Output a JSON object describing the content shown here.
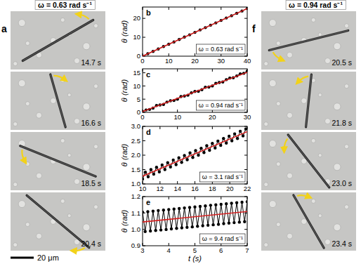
{
  "chart_data": [
    {
      "type": "line",
      "panel": "b",
      "ylabel": "θ (rad)",
      "annotation": "ω = 0.63 rad s⁻¹",
      "xlim": [
        0,
        40
      ],
      "xticks": [
        0,
        10,
        20,
        30,
        40
      ],
      "ylim": [
        0,
        26
      ],
      "yticks": [
        0,
        10,
        20
      ],
      "grid": false,
      "series": [
        {
          "type": "line",
          "marker": "circle",
          "line_style": "solid",
          "color": "#000000",
          "x": [
            0,
            2,
            4,
            6,
            8,
            10,
            12,
            14,
            16,
            18,
            20,
            22,
            24,
            26,
            28,
            30,
            32,
            34,
            36,
            38,
            40
          ],
          "values": [
            0,
            1.3,
            2.5,
            3.8,
            5.1,
            6.3,
            7.5,
            8.8,
            10.1,
            11.3,
            12.6,
            13.9,
            15.1,
            16.4,
            17.6,
            18.9,
            20.2,
            21.4,
            22.7,
            23.9,
            25.2
          ]
        },
        {
          "type": "line",
          "marker": "none",
          "line_style": "solid",
          "color": "#d42020",
          "x": [
            0,
            40
          ],
          "values": [
            0,
            25.2
          ]
        }
      ]
    },
    {
      "type": "line",
      "panel": "c",
      "ylabel": "θ (rad)",
      "annotation": "ω = 0.94 rad s⁻¹",
      "xlim": [
        0,
        30
      ],
      "xticks": [
        0,
        10,
        20,
        30
      ],
      "ylim": [
        0,
        16.5
      ],
      "yticks": [
        0,
        5,
        10,
        15
      ],
      "grid": false,
      "series": [
        {
          "type": "line",
          "marker": "circle",
          "line_style": "solid",
          "color": "#000000",
          "x": [
            0,
            1,
            2,
            3,
            4,
            5,
            6,
            7,
            8,
            9,
            10,
            11,
            12,
            13,
            14,
            15,
            16,
            17,
            18,
            19,
            20,
            21,
            22,
            23,
            24,
            25,
            26,
            27,
            28,
            29,
            30
          ],
          "values": [
            0.3,
            0.9,
            1.1,
            1.6,
            2.6,
            2.8,
            3.0,
            3.9,
            4.4,
            4.5,
            5.0,
            6.0,
            6.2,
            6.5,
            7.4,
            7.9,
            8.0,
            8.6,
            9.5,
            9.6,
            10.0,
            11.0,
            11.3,
            11.5,
            12.4,
            13.0,
            13.1,
            13.8,
            14.6,
            14.8,
            15.6
          ]
        },
        {
          "type": "line",
          "marker": "none",
          "line_style": "solid",
          "color": "#d42020",
          "x": [
            0,
            30
          ],
          "values": [
            0.3,
            15.2
          ]
        }
      ]
    },
    {
      "type": "line",
      "panel": "d",
      "ylabel": "θ (rad)",
      "annotation": "ω = 3.1 rad s⁻¹",
      "xlim": [
        10,
        22
      ],
      "xticks": [
        10,
        12,
        14,
        16,
        18,
        20,
        22
      ],
      "ylim": [
        1,
        3
      ],
      "yticks": [
        {
          "value": 1,
          "label": "1.0"
        },
        1.5,
        {
          "value": 2,
          "label": "2.0"
        },
        2.5,
        {
          "value": 3,
          "label": "3.0"
        }
      ],
      "grid": false,
      "series": [
        {
          "type": "line",
          "marker": "circle",
          "line_style": "solid",
          "color": "#000000",
          "x": [
            10,
            10.32,
            10.64,
            10.96,
            11.28,
            11.6,
            11.92,
            12.24,
            12.56,
            12.88,
            13.2,
            13.52,
            13.84,
            14.16,
            14.48,
            14.8,
            15.12,
            15.44,
            15.76,
            16.08,
            16.4,
            16.72,
            17.04,
            17.36,
            17.68,
            18,
            18.32,
            18.64,
            18.96,
            19.28,
            19.6,
            19.92,
            20.24,
            20.56,
            20.88,
            21.2,
            21.52,
            21.84
          ],
          "values": [
            1.17,
            1.41,
            1.25,
            1.5,
            1.34,
            1.58,
            1.42,
            1.66,
            1.5,
            1.74,
            1.59,
            1.83,
            1.67,
            1.91,
            1.75,
            1.99,
            1.84,
            2.08,
            1.92,
            2.16,
            2.0,
            2.24,
            2.09,
            2.33,
            2.17,
            2.41,
            2.25,
            2.49,
            2.34,
            2.58,
            2.42,
            2.66,
            2.5,
            2.74,
            2.58,
            2.83,
            2.67,
            2.91
          ]
        },
        {
          "type": "line",
          "marker": "none",
          "line_style": "solid",
          "color": "#d42020",
          "x": [
            10,
            22
          ],
          "values": [
            1.27,
            2.82
          ]
        }
      ]
    },
    {
      "type": "line",
      "panel": "e",
      "ylabel": "θ (rad)",
      "xlabel": "t (s)",
      "annotation": "ω = 9.4 rad s⁻¹",
      "xlim": [
        3,
        7
      ],
      "xticks": [
        3,
        4,
        5,
        6,
        7
      ],
      "ylim": [
        0.9,
        1.2
      ],
      "yticks": [
        0.9,
        {
          "value": 1,
          "label": "1.0"
        },
        1.1,
        1.2
      ],
      "grid": false,
      "series": [
        {
          "type": "line",
          "marker": "circle",
          "line_style": "solid",
          "color": "#000000",
          "x": [
            3,
            3.1,
            3.2,
            3.3,
            3.4,
            3.5,
            3.6,
            3.7,
            3.8,
            3.9,
            4,
            4.1,
            4.2,
            4.3,
            4.4,
            4.5,
            4.6,
            4.7,
            4.8,
            4.9,
            5,
            5.1,
            5.2,
            5.3,
            5.4,
            5.5,
            5.6,
            5.7,
            5.8,
            5.9,
            6,
            6.1,
            6.2,
            6.3,
            6.4,
            6.5,
            6.6,
            6.7,
            6.8,
            6.9,
            7
          ],
          "values": [
            1.105,
            0.987,
            1.108,
            0.99,
            1.111,
            0.993,
            1.115,
            0.996,
            1.118,
            0.999,
            1.121,
            1.003,
            1.124,
            1.006,
            1.127,
            1.009,
            1.131,
            1.012,
            1.134,
            1.015,
            1.137,
            1.019,
            1.14,
            1.022,
            1.143,
            1.025,
            1.147,
            1.028,
            1.15,
            1.031,
            1.153,
            1.035,
            1.156,
            1.038,
            1.159,
            1.041,
            1.163,
            1.044,
            1.166,
            1.047,
            1.169
          ]
        },
        {
          "type": "line",
          "marker": "none",
          "line_style": "solid",
          "color": "#d42020",
          "x": [
            3,
            7
          ],
          "values": [
            1.045,
            1.109
          ]
        }
      ]
    }
  ],
  "image_panels": [
    {
      "panel": "a",
      "header": "ω = 0.63 rad s⁻¹",
      "times": [
        "14.7 s",
        "16.6 s",
        "18.5 s",
        "20.4 s"
      ]
    },
    {
      "panel": "f",
      "header": "ω = 0.94 rad s⁻¹",
      "times": [
        "20.5 s",
        "21.8 s",
        "23.0 s",
        "23.4 s"
      ]
    }
  ],
  "scale_bar": "20 μm"
}
